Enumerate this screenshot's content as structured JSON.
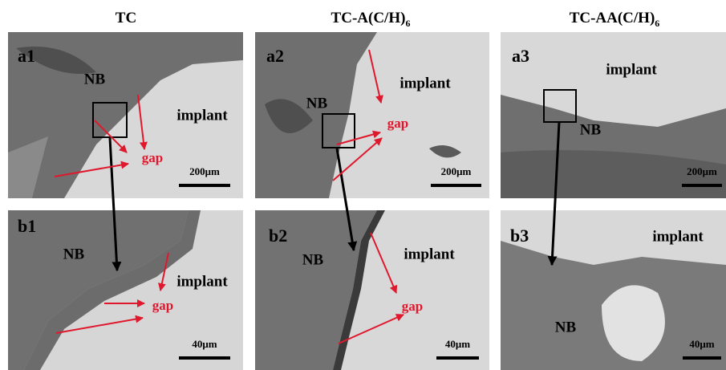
{
  "headers": [
    {
      "text": "TC"
    },
    {
      "text": "TC-A(C/H)",
      "sub": "6"
    },
    {
      "text": "TC-AA(C/H)",
      "sub": "6"
    }
  ],
  "panels": [
    {
      "label": "a1",
      "annotations": [
        "NB",
        "implant",
        "gap"
      ],
      "scale_bar": "200μm"
    },
    {
      "label": "a2",
      "annotations": [
        "NB",
        "implant",
        "gap"
      ],
      "scale_bar": "200μm"
    },
    {
      "label": "a3",
      "annotations": [
        "implant",
        "NB"
      ],
      "scale_bar": "200μm"
    },
    {
      "label": "b1",
      "annotations": [
        "NB",
        "implant",
        "gap"
      ],
      "scale_bar": "40μm"
    },
    {
      "label": "b2",
      "annotations": [
        "NB",
        "implant",
        "gap"
      ],
      "scale_bar": "40μm"
    },
    {
      "label": "b3",
      "annotations": [
        "implant",
        "NB"
      ],
      "scale_bar": "40μm"
    }
  ]
}
